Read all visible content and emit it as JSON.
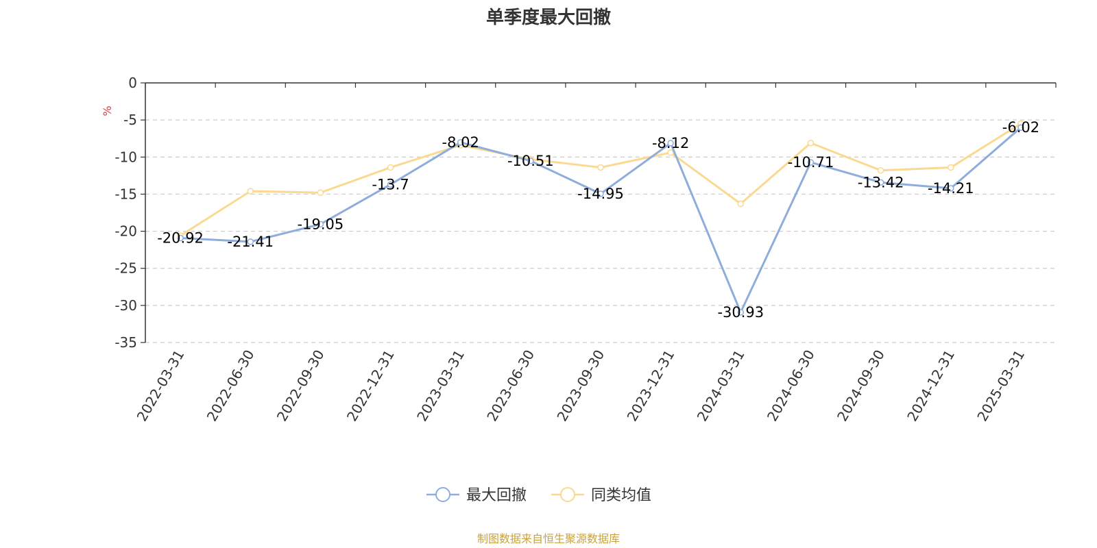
{
  "chart_data": {
    "type": "line",
    "title": "单季度最大回撤",
    "ylabel": "%",
    "ylim": [
      -35,
      0
    ],
    "yticks": [
      0,
      -5,
      -10,
      -15,
      -20,
      -25,
      -30,
      -35
    ],
    "grid": "horizontal dashed",
    "categories": [
      "2022-03-31",
      "2022-06-30",
      "2022-09-30",
      "2022-12-31",
      "2023-03-31",
      "2023-06-30",
      "2023-09-30",
      "2023-12-31",
      "2024-03-31",
      "2024-06-30",
      "2024-09-30",
      "2024-12-31",
      "2025-03-31"
    ],
    "series": [
      {
        "name": "最大回撤",
        "color": "#8eaddb",
        "values": [
          -20.92,
          -21.41,
          -19.05,
          -13.7,
          -8.02,
          -10.51,
          -14.95,
          -8.12,
          -30.93,
          -10.71,
          -13.42,
          -14.21,
          -6.02
        ],
        "labels": [
          "-20.92",
          "-21.41",
          "-19.05",
          "-13.7",
          "-8.02",
          "-10.51",
          "-14.95",
          "-8.12",
          "-30.93",
          "-10.71",
          "-13.42",
          "-14.21",
          "-6.02"
        ]
      },
      {
        "name": "同类均值",
        "color": "#fbd990",
        "values": [
          -20.6,
          -14.6,
          -14.8,
          -11.4,
          -8.4,
          -10.3,
          -11.4,
          -9.4,
          -16.3,
          -8.1,
          -11.8,
          -11.4,
          -5.5
        ]
      }
    ],
    "legend_position": "bottom-center",
    "unit_color": "#e03c3c"
  },
  "source": {
    "text": "制图数据来自恒生聚源数据库",
    "color": "#c9a23a"
  }
}
